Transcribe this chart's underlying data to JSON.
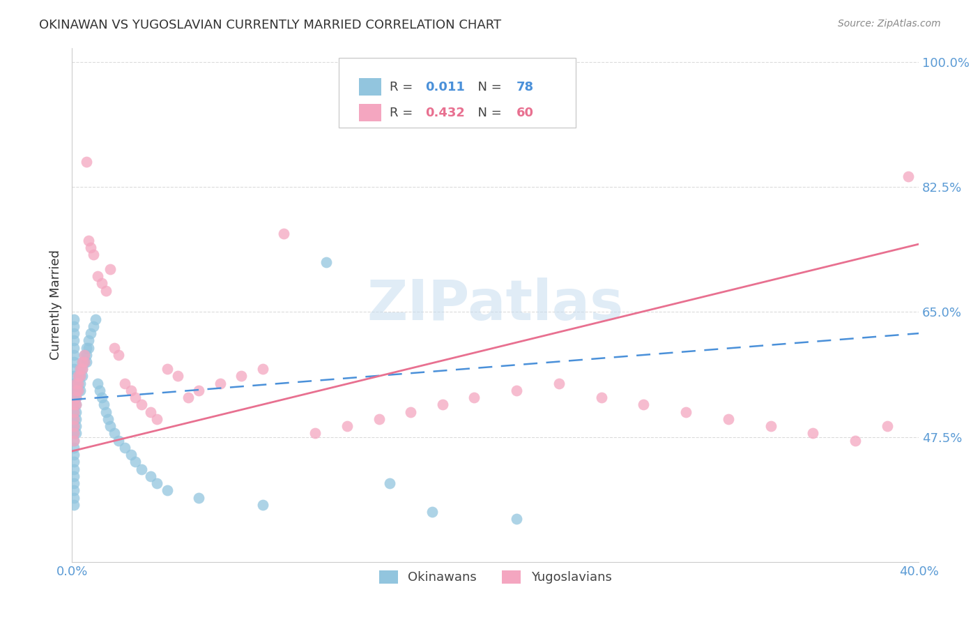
{
  "title": "OKINAWAN VS YUGOSLAVIAN CURRENTLY MARRIED CORRELATION CHART",
  "source": "Source: ZipAtlas.com",
  "ylabel": "Currently Married",
  "xlim": [
    0.0,
    0.4
  ],
  "ylim": [
    0.3,
    1.02
  ],
  "yticks": [
    0.475,
    0.65,
    0.825,
    1.0
  ],
  "ytick_labels": [
    "47.5%",
    "65.0%",
    "82.5%",
    "100.0%"
  ],
  "xticks": [
    0.0,
    0.1,
    0.2,
    0.3,
    0.4
  ],
  "xtick_labels": [
    "0.0%",
    "",
    "",
    "",
    "40.0%"
  ],
  "okinawan_color": "#92C5DE",
  "yugoslavian_color": "#F4A6C0",
  "okinawan_line_color": "#4A90D9",
  "yugoslavian_line_color": "#E87090",
  "background_color": "#ffffff",
  "grid_color": "#cccccc",
  "tick_label_color": "#5B9BD5",
  "okinawan_x": [
    0.001,
    0.001,
    0.001,
    0.001,
    0.001,
    0.001,
    0.001,
    0.001,
    0.001,
    0.001,
    0.001,
    0.001,
    0.001,
    0.001,
    0.001,
    0.001,
    0.001,
    0.001,
    0.001,
    0.001,
    0.001,
    0.001,
    0.001,
    0.001,
    0.001,
    0.001,
    0.001,
    0.001,
    0.002,
    0.002,
    0.002,
    0.002,
    0.002,
    0.002,
    0.002,
    0.002,
    0.003,
    0.003,
    0.003,
    0.004,
    0.004,
    0.004,
    0.004,
    0.005,
    0.005,
    0.005,
    0.006,
    0.006,
    0.007,
    0.007,
    0.007,
    0.008,
    0.008,
    0.009,
    0.01,
    0.011,
    0.012,
    0.013,
    0.014,
    0.015,
    0.016,
    0.017,
    0.018,
    0.02,
    0.022,
    0.025,
    0.028,
    0.03,
    0.033,
    0.037,
    0.04,
    0.045,
    0.06,
    0.09,
    0.12,
    0.15,
    0.17,
    0.21
  ],
  "okinawan_y": [
    0.53,
    0.54,
    0.55,
    0.54,
    0.52,
    0.51,
    0.5,
    0.49,
    0.48,
    0.47,
    0.46,
    0.45,
    0.44,
    0.43,
    0.42,
    0.56,
    0.57,
    0.58,
    0.59,
    0.6,
    0.61,
    0.62,
    0.63,
    0.64,
    0.41,
    0.4,
    0.39,
    0.38,
    0.55,
    0.54,
    0.53,
    0.52,
    0.51,
    0.5,
    0.49,
    0.48,
    0.56,
    0.55,
    0.54,
    0.57,
    0.56,
    0.55,
    0.54,
    0.58,
    0.57,
    0.56,
    0.59,
    0.58,
    0.6,
    0.59,
    0.58,
    0.61,
    0.6,
    0.62,
    0.63,
    0.64,
    0.55,
    0.54,
    0.53,
    0.52,
    0.51,
    0.5,
    0.49,
    0.48,
    0.47,
    0.46,
    0.45,
    0.44,
    0.43,
    0.42,
    0.41,
    0.4,
    0.39,
    0.38,
    0.72,
    0.41,
    0.37,
    0.36
  ],
  "yugoslavian_x": [
    0.001,
    0.001,
    0.001,
    0.001,
    0.001,
    0.001,
    0.002,
    0.002,
    0.002,
    0.002,
    0.003,
    0.003,
    0.003,
    0.004,
    0.004,
    0.005,
    0.005,
    0.006,
    0.006,
    0.007,
    0.008,
    0.009,
    0.01,
    0.012,
    0.014,
    0.016,
    0.018,
    0.02,
    0.022,
    0.025,
    0.028,
    0.03,
    0.033,
    0.037,
    0.04,
    0.045,
    0.05,
    0.055,
    0.06,
    0.07,
    0.08,
    0.09,
    0.1,
    0.115,
    0.13,
    0.145,
    0.16,
    0.175,
    0.19,
    0.21,
    0.23,
    0.25,
    0.27,
    0.29,
    0.31,
    0.33,
    0.35,
    0.37,
    0.385,
    0.395
  ],
  "yugoslavian_y": [
    0.52,
    0.51,
    0.5,
    0.49,
    0.48,
    0.47,
    0.55,
    0.54,
    0.53,
    0.52,
    0.56,
    0.55,
    0.54,
    0.57,
    0.56,
    0.58,
    0.57,
    0.59,
    0.58,
    0.86,
    0.75,
    0.74,
    0.73,
    0.7,
    0.69,
    0.68,
    0.71,
    0.6,
    0.59,
    0.55,
    0.54,
    0.53,
    0.52,
    0.51,
    0.5,
    0.57,
    0.56,
    0.53,
    0.54,
    0.55,
    0.56,
    0.57,
    0.76,
    0.48,
    0.49,
    0.5,
    0.51,
    0.52,
    0.53,
    0.54,
    0.55,
    0.53,
    0.52,
    0.51,
    0.5,
    0.49,
    0.48,
    0.47,
    0.49,
    0.84
  ],
  "ok_line_x": [
    0.0,
    0.4
  ],
  "ok_line_y": [
    0.527,
    0.62
  ],
  "yu_line_x": [
    0.0,
    0.4
  ],
  "yu_line_y": [
    0.455,
    0.745
  ],
  "watermark_text": "ZIPatlas",
  "legend_r1": "R =  0.011",
  "legend_n1": "N = 78",
  "legend_r2": "R =  0.432",
  "legend_n2": "N = 60",
  "bottom_legend_ok": "Okinawans",
  "bottom_legend_yu": "Yugoslavians"
}
